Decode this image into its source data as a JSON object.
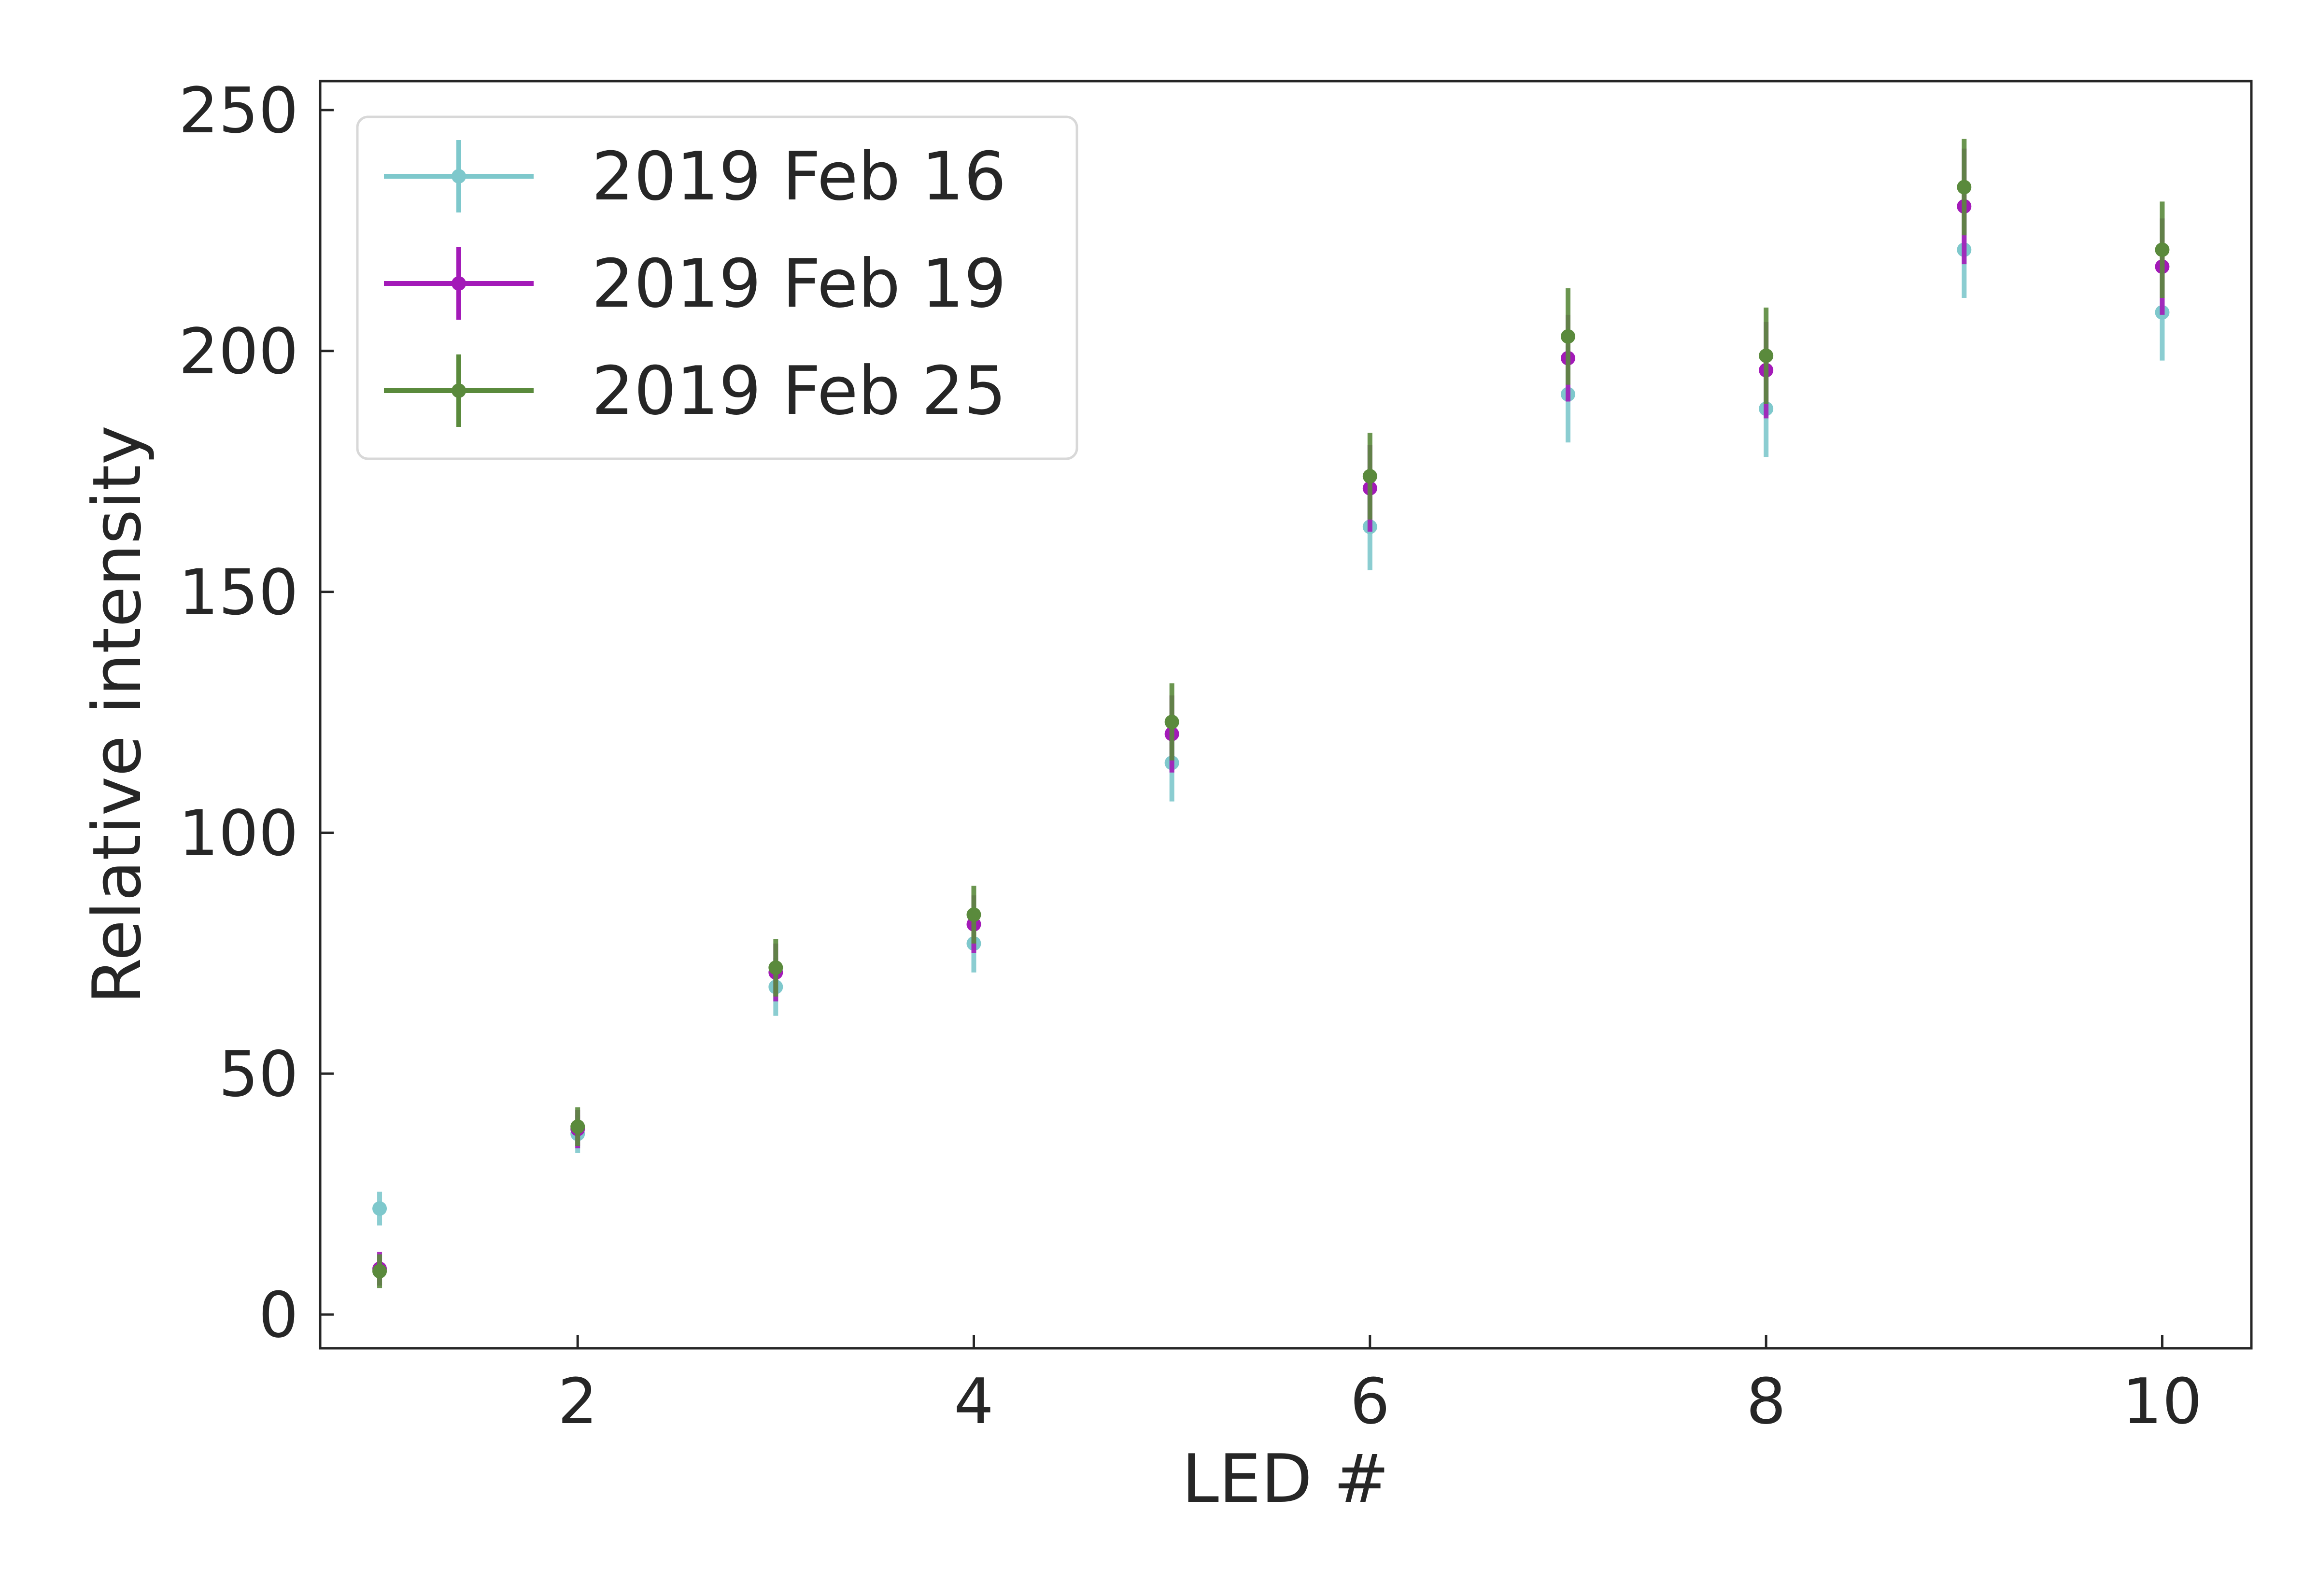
{
  "chart_data": {
    "type": "scatter",
    "title": "",
    "xlabel": "LED #",
    "ylabel": "Relative intensity",
    "xlim": [
      0.7,
      10.45
    ],
    "ylim": [
      -7,
      256
    ],
    "xticks": [
      2,
      4,
      6,
      8,
      10
    ],
    "yticks": [
      0,
      50,
      100,
      150,
      200,
      250
    ],
    "grid": false,
    "legend_position": "top-left",
    "x": [
      1,
      2,
      3,
      4,
      5,
      6,
      7,
      8,
      9,
      10
    ],
    "series": [
      {
        "name": "2019 Feb 16",
        "color": "#7ec8cc",
        "values": [
          22,
          37.5,
          68,
          77,
          114.5,
          163.5,
          191,
          188,
          221,
          208
        ],
        "errors": [
          3.5,
          4,
          6,
          6,
          8,
          9,
          10,
          10,
          10,
          10
        ]
      },
      {
        "name": "2019 Feb 19",
        "color": "#a31ab8",
        "values": [
          9.5,
          38.5,
          71,
          81,
          120.5,
          171.5,
          198.5,
          196,
          230,
          217.5
        ],
        "errors": [
          3.5,
          4,
          6,
          6,
          8,
          9,
          9,
          10,
          12,
          10
        ]
      },
      {
        "name": "2019 Feb 25",
        "color": "#5a8a3c",
        "values": [
          9,
          39,
          72,
          83,
          123,
          174,
          203,
          199,
          234,
          221
        ],
        "errors": [
          3.5,
          4,
          6,
          6,
          8,
          9,
          10,
          10,
          10,
          10
        ]
      }
    ]
  }
}
